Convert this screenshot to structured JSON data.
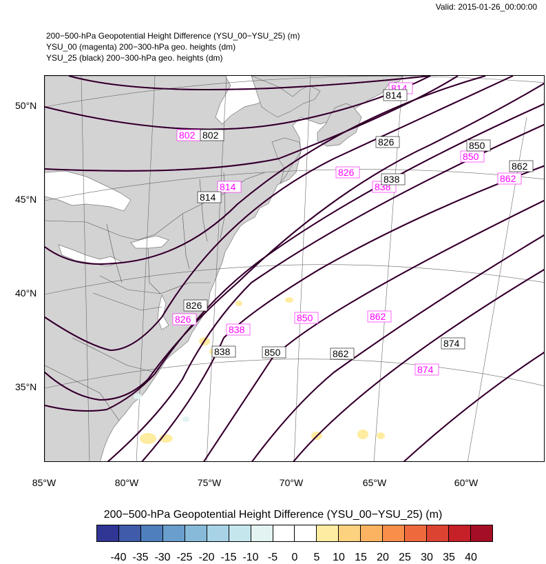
{
  "valid_time": "Valid: 2015-01-26_00:00:00",
  "titles": [
    "200−500-hPa Geopotential Height Difference (YSU_00−YSU_25)   (m)",
    "YSU_00 (magenta) 200−300-hPa geo. heights   (dm)",
    "YSU_25 (black) 200−300-hPa geo. heights   (dm)"
  ],
  "lat_labels": [
    "50°N",
    "45°N",
    "40°N",
    "35°N"
  ],
  "lon_labels": [
    "85°W",
    "80°W",
    "75°W",
    "70°W",
    "65°W",
    "60°W"
  ],
  "contour_labels_black": [
    "814",
    "802",
    "826",
    "814",
    "838",
    "850",
    "862",
    "826",
    "838",
    "850",
    "862",
    "874"
  ],
  "contour_labels_magenta": [
    "814",
    "802",
    "826",
    "814",
    "838",
    "850",
    "862",
    "826",
    "838",
    "850",
    "862",
    "874"
  ],
  "colorbar": {
    "title": "200−500-hPa Geopotential Height Difference (YSU_00−YSU_25)  (m)",
    "colors": [
      "#313695",
      "#3f5ba9",
      "#4f7fbd",
      "#6a9ecc",
      "#87bad9",
      "#a8d3e6",
      "#c6e6ee",
      "#e3f3f2",
      "#ffffff",
      "#ffffff",
      "#feeca0",
      "#fdd27f",
      "#fbb361",
      "#f78f4b",
      "#ee6a3d",
      "#dd4331",
      "#c62028",
      "#a50f25"
    ],
    "ticks": [
      "-40",
      "-35",
      "-30",
      "-25",
      "-20",
      "-15",
      "-10",
      "-5",
      "0",
      "5",
      "10",
      "15",
      "20",
      "25",
      "30",
      "35",
      "40"
    ]
  },
  "colors": {
    "land": "#d3d3d3",
    "black_contour": "#1a0014",
    "magenta_contour": "#ff00ff",
    "grid": "#666666"
  }
}
